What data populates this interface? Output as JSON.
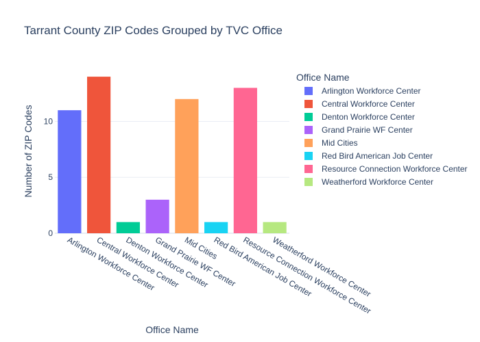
{
  "chart_data": {
    "type": "bar",
    "title": "Tarrant County ZIP Codes Grouped by TVC Office",
    "xlabel": "Office Name",
    "ylabel": "Number of ZIP Codes",
    "categories": [
      "Arlington Workforce Center",
      "Central Workforce Center",
      "Denton Workforce Center",
      "Grand Prairie WF Center",
      "Mid Cities",
      "Red Bird American Job Center",
      "Resource Connection Workforce Center",
      "Weatherford Workforce Center"
    ],
    "values": [
      11,
      14,
      1,
      3,
      12,
      1,
      13,
      1
    ],
    "colors": [
      "#636efa",
      "#ef553b",
      "#00cc96",
      "#ab63fa",
      "#ffa15a",
      "#19d3f3",
      "#ff6692",
      "#b6e880"
    ],
    "ylim": [
      0,
      14.74
    ],
    "yticks": [
      0,
      5,
      10
    ],
    "grid": true,
    "legend": {
      "title": "Office Name",
      "placement": "right"
    }
  }
}
